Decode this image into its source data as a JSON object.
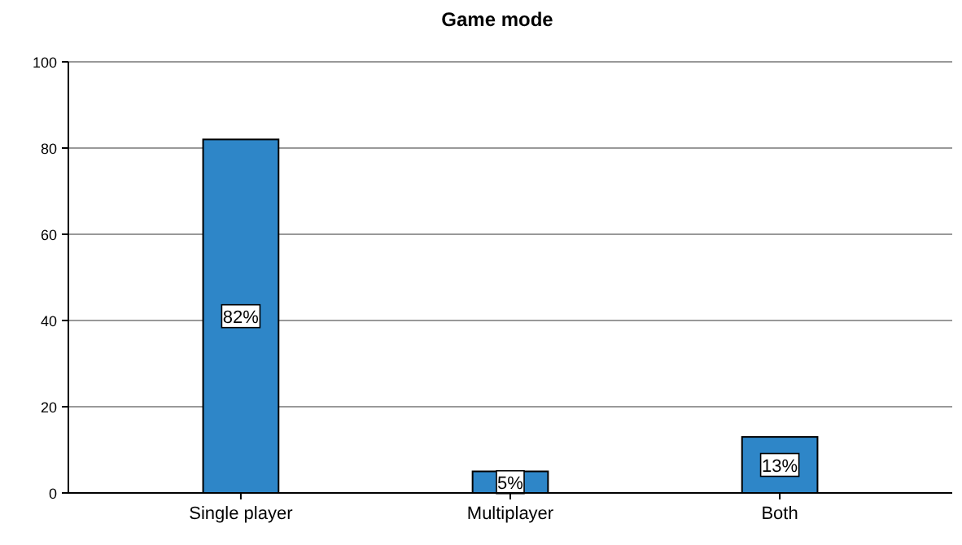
{
  "chart_data": {
    "type": "bar",
    "title": "Game mode",
    "categories": [
      "Single player",
      "Multiplayer",
      "Both"
    ],
    "values": [
      82,
      5,
      13
    ],
    "color": "#2e86c8",
    "value_labels": [
      "82%",
      "5%",
      "13%"
    ],
    "ylim": [
      0,
      100
    ],
    "yticks": [
      0,
      20,
      40,
      60,
      80,
      100
    ],
    "grid": "y"
  }
}
